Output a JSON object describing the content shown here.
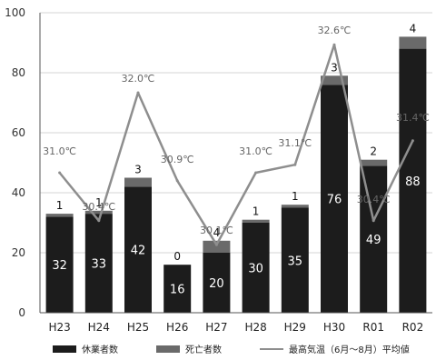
{
  "chart_data": {
    "type": "bar",
    "categories": [
      "H23",
      "H24",
      "H25",
      "H26",
      "H27",
      "H28",
      "H29",
      "H30",
      "R01",
      "R02"
    ],
    "series": [
      {
        "name": "休業者数",
        "values": [
          32,
          33,
          42,
          16,
          20,
          30,
          35,
          76,
          49,
          88
        ]
      },
      {
        "name": "死亡者数",
        "values": [
          1,
          1,
          3,
          0,
          4,
          1,
          1,
          3,
          2,
          4
        ]
      },
      {
        "name": "最高気温（6月〜8月）平均値",
        "type": "line",
        "values": [
          31.0,
          30.4,
          32.0,
          30.9,
          30.1,
          31.0,
          31.1,
          32.6,
          30.4,
          31.4
        ],
        "labels": [
          "31.0℃",
          "30.4℃",
          "32.0℃",
          "30.9℃",
          "30.1℃",
          "31.0℃",
          "31.1℃",
          "32.6℃",
          "30.4℃",
          "31.4℃"
        ]
      }
    ],
    "stacked": true,
    "ylim": [
      0,
      100
    ],
    "yticks": [
      0,
      20,
      40,
      60,
      80,
      100
    ],
    "grid": true,
    "legend_position": "bottom",
    "colors": {
      "休業者数": "#1c1c1c",
      "死亡者数": "#6a6a6a",
      "最高気温（6月〜8月）平均値": "#8e8e8e"
    }
  }
}
